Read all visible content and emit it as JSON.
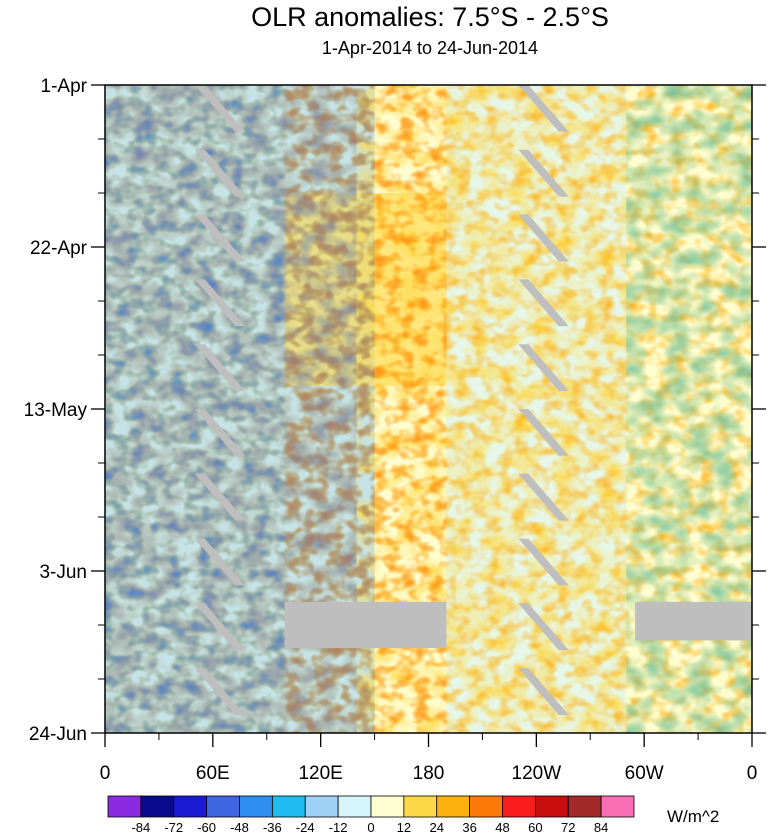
{
  "title": "OLR anomalies: 7.5°S - 2.5°S",
  "subtitle": "1-Apr-2014 to 24-Jun-2014",
  "units": "W/m^2",
  "chart_data": {
    "type": "heatmap",
    "title": "OLR anomalies: 7.5°S - 2.5°S",
    "subtitle": "1-Apr-2014 to 24-Jun-2014",
    "xlabel": "",
    "ylabel": "",
    "x_axis": {
      "ticks": [
        "0",
        "60E",
        "120E",
        "180",
        "120W",
        "60W",
        "0"
      ],
      "range_deg_east": [
        0,
        360
      ]
    },
    "y_axis": {
      "ticks": [
        "1-Apr",
        "22-Apr",
        "13-May",
        "3-Jun",
        "24-Jun"
      ],
      "range": [
        "2014-04-01",
        "2014-06-24"
      ],
      "direction": "time increases downward"
    },
    "colorbar": {
      "units": "W/m^2",
      "levels": [
        -84,
        -72,
        -60,
        -48,
        -36,
        -24,
        -12,
        0,
        12,
        24,
        36,
        48,
        60,
        72,
        84
      ],
      "colors": [
        "#8a2be2",
        "#0a0a8c",
        "#1a1ad2",
        "#3d66e0",
        "#2e8ff0",
        "#1ebcf0",
        "#9fd0f5",
        "#d6f4fb",
        "#fefdd0",
        "#fdd94a",
        "#fdb10e",
        "#fc7a0a",
        "#f81c1c",
        "#c80e0e",
        "#a32a2a",
        "#f76eb4"
      ]
    },
    "missing_color": "#bebebe",
    "features": [
      {
        "description": "Missing data (gray diagonal streaks) near 60E-75E",
        "x_deg_east": [
          50,
          75
        ],
        "dates": [
          "2014-04-01",
          "2014-06-24"
        ]
      },
      {
        "description": "Missing data (gray diagonal streaks) near 130W-115W",
        "x_deg_east": [
          230,
          255
        ],
        "dates": [
          "2014-04-01",
          "2014-06-24"
        ]
      },
      {
        "description": "Missing data horizontal band",
        "x_deg_east": [
          100,
          190
        ],
        "dates": [
          "2014-06-07",
          "2014-06-13"
        ]
      },
      {
        "description": "Missing data horizontal band",
        "x_deg_east": [
          295,
          360
        ],
        "dates": [
          "2014-06-07",
          "2014-06-12"
        ]
      },
      {
        "description": "Negative (blue) anomalies dominate",
        "x_deg_east": [
          0,
          150
        ],
        "dates": [
          "2014-04-01",
          "2014-06-24"
        ]
      },
      {
        "description": "Positive (orange) anomalies dominate",
        "x_deg_east": [
          100,
          190
        ],
        "dates": [
          "2014-04-15",
          "2014-05-10"
        ]
      },
      {
        "description": "Weak positive/near-zero anomalies",
        "x_deg_east": [
          190,
          290
        ],
        "dates": [
          "2014-04-01",
          "2014-06-24"
        ]
      }
    ],
    "grid": false,
    "legend": "bottom"
  }
}
